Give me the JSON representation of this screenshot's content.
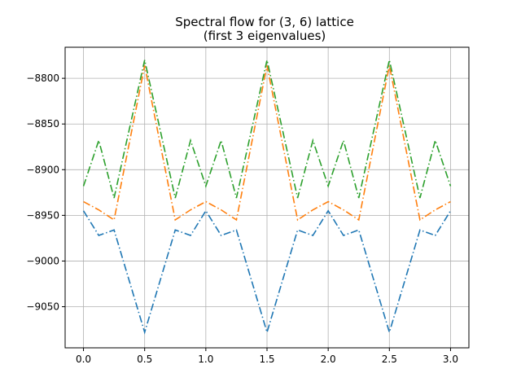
{
  "chart_data": {
    "type": "line",
    "title": "Spectral flow for (3, 6) lattice",
    "subtitle": "(first 3 eigenvalues)",
    "xlabel": "",
    "ylabel": "",
    "xlim": [
      -0.15,
      3.15
    ],
    "ylim": [
      -9095,
      -8766
    ],
    "xticks": [
      0.0,
      0.5,
      1.0,
      1.5,
      2.0,
      2.5,
      3.0
    ],
    "xtick_labels": [
      "0.0",
      "0.5",
      "1.0",
      "1.5",
      "2.0",
      "2.5",
      "3.0"
    ],
    "yticks": [
      -8800,
      -8850,
      -8900,
      -8950,
      -9000,
      -9050
    ],
    "ytick_labels": [
      "−8800",
      "−8850",
      "−8900",
      "−8950",
      "−9000",
      "−9050"
    ],
    "grid": true,
    "line_style": "dash-dot",
    "x": [
      0.0,
      0.125,
      0.25,
      0.5,
      0.75,
      0.875,
      1.0,
      1.125,
      1.25,
      1.5,
      1.75,
      1.875,
      2.0,
      2.125,
      2.25,
      2.5,
      2.75,
      2.875,
      3.0
    ],
    "series": [
      {
        "color": "#1f77b4",
        "values": [
          -8945,
          -8972,
          -8966,
          -9078,
          -8966,
          -8972,
          -8945,
          -8972,
          -8966,
          -9078,
          -8966,
          -8972,
          -8945,
          -8972,
          -8966,
          -9078,
          -8966,
          -8972,
          -8945
        ]
      },
      {
        "color": "#ff7f0e",
        "values": [
          -8935,
          -8944,
          -8955,
          -8786,
          -8955,
          -8944,
          -8935,
          -8944,
          -8955,
          -8786,
          -8955,
          -8944,
          -8935,
          -8944,
          -8955,
          -8786,
          -8955,
          -8944,
          -8935
        ]
      },
      {
        "color": "#2ca02c",
        "values": [
          -8918,
          -8868,
          -8931,
          -8780,
          -8931,
          -8868,
          -8918,
          -8868,
          -8931,
          -8780,
          -8931,
          -8868,
          -8918,
          -8868,
          -8931,
          -8780,
          -8931,
          -8868,
          -8918
        ]
      }
    ]
  }
}
